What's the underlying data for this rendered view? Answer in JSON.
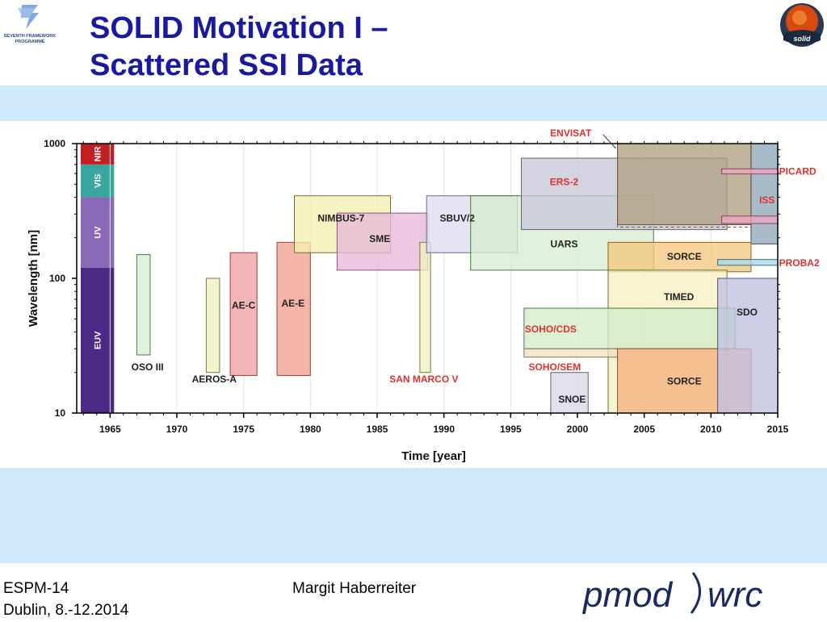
{
  "slide": {
    "title_line1": "SOLID Motivation I –",
    "title_line2": "Scattered SSI Data",
    "fp7_label_line1": "SEVENTH FRAMEWORK",
    "fp7_label_line2": "PROGRAMME",
    "solid_logo_text": "solid",
    "footer_left_line1": "ESPM-14",
    "footer_left_line2": "Dublin, 8.-12.2014",
    "footer_mid": "Margit Haberreiter",
    "footer_logo_left": "pmod",
    "footer_logo_right": "wrc"
  },
  "chart_data": {
    "type": "timeline",
    "xlabel": "Time [year]",
    "ylabel": "Wavelength [nm]",
    "xlim": [
      1962.5,
      2015
    ],
    "ylim": [
      10,
      1000
    ],
    "yscale": "log",
    "xticks": [
      1965,
      1970,
      1975,
      1980,
      1985,
      1990,
      1995,
      2000,
      2005,
      2010,
      2015
    ],
    "yticks": [
      {
        "value": 10,
        "label": "10"
      },
      {
        "value": 100,
        "label": "100"
      },
      {
        "value": 1000,
        "label": "1000"
      }
    ],
    "spectral_bands": [
      {
        "label": "EUV",
        "range": [
          10,
          120
        ],
        "color": "#4b2a85"
      },
      {
        "label": "UV",
        "range": [
          120,
          400
        ],
        "color": "#8a68b8"
      },
      {
        "label": "VIS",
        "range": [
          400,
          700
        ],
        "color": "#3aa6a0"
      },
      {
        "label": "NIR",
        "range": [
          700,
          1000
        ],
        "color": "#c02020"
      }
    ],
    "missions": [
      {
        "label": "OSO III",
        "x": [
          1967,
          1968
        ],
        "y": [
          27,
          150
        ],
        "fill": "#d6ecd2",
        "stroke": "#4a7a4a",
        "label_color": "#222222",
        "label_at": [
          1967.8,
          22
        ]
      },
      {
        "label": "AEROS-A",
        "x": [
          1972.2,
          1973.2
        ],
        "y": [
          20,
          100
        ],
        "fill": "#f0f0c0",
        "stroke": "#7a7a3a",
        "label_color": "#222222",
        "label_at": [
          1972.8,
          17.8
        ]
      },
      {
        "label": "AE-C",
        "x": [
          1974,
          1976
        ],
        "y": [
          19,
          155
        ],
        "fill": "#f0a0a0",
        "stroke": "#a04040",
        "label_color": "#222222",
        "label_at": [
          1975,
          63
        ]
      },
      {
        "label": "AE-E",
        "x": [
          1977.5,
          1980
        ],
        "y": [
          19,
          185
        ],
        "fill": "#f0a090",
        "stroke": "#a04030",
        "label_color": "#222222",
        "label_at": [
          1978.7,
          65
        ]
      },
      {
        "label": "NIMBUS-7",
        "x": [
          1978.8,
          1986
        ],
        "y": [
          155,
          410
        ],
        "fill": "#f2f0b0",
        "stroke": "#707030",
        "label_color": "#222222",
        "label_at": [
          1982.3,
          280
        ]
      },
      {
        "label": "SME",
        "x": [
          1982,
          1988.8
        ],
        "y": [
          115,
          305
        ],
        "fill": "#e8b8d8",
        "stroke": "#905080",
        "label_color": "#222222",
        "label_at": [
          1985.2,
          196
        ]
      },
      {
        "label": "SAN MARCO V",
        "x": [
          1988.2,
          1989
        ],
        "y": [
          20,
          185
        ],
        "fill": "#f0f0c0",
        "stroke": "#7a7a3a",
        "label_color": "#e03030",
        "label_at": [
          1988.5,
          17.8
        ]
      },
      {
        "label": "SBUV/2",
        "x": [
          1988.7,
          1995.5
        ],
        "y": [
          155,
          410
        ],
        "fill": "#dcdcee",
        "stroke": "#6a6a8a",
        "label_color": "#222222",
        "label_at": [
          1991,
          280
        ]
      },
      {
        "label": "UARS",
        "x": [
          1992,
          2005.7
        ],
        "y": [
          115,
          410
        ],
        "fill": "#d8ecd0",
        "stroke": "#4a7a4a",
        "label_color": "#222222",
        "label_at": [
          1999,
          180
        ]
      },
      {
        "label": "ERS-2",
        "x": [
          1995.8,
          2011.2
        ],
        "y": [
          230,
          780
        ],
        "fill": "#c8c8d8",
        "stroke": "#606070",
        "label_color": "#e03030",
        "label_at": [
          1999,
          520
        ]
      },
      {
        "label": "",
        "x": [
          2003,
          2013
        ],
        "y": [
          250,
          1000
        ],
        "fill": "#b0a080",
        "stroke": "#605040",
        "label_color": "#222222",
        "label_at": [
          2008,
          600
        ]
      },
      {
        "label": "",
        "x": [
          2013,
          2015
        ],
        "y": [
          180,
          1000
        ],
        "fill": "#90a8b8",
        "stroke": "#405060",
        "label_color": "#222222",
        "label_at": [
          2014,
          500
        ]
      },
      {
        "label": "SORCE",
        "x": [
          2002.3,
          2013
        ],
        "y": [
          112,
          185
        ],
        "fill": "#f4c880",
        "stroke": "#906020",
        "label_color": "#222222",
        "label_at": [
          2008,
          145
        ]
      },
      {
        "label": "TIMED",
        "x": [
          2002.3,
          2011.2
        ],
        "y": [
          10,
          115
        ],
        "fill": "#f4f0c0",
        "stroke": "#707030",
        "label_color": "#222222",
        "label_at": [
          2007.6,
          73
        ]
      },
      {
        "label": "SOHO/CDS",
        "x": [
          1996,
          2011.8
        ],
        "y": [
          30,
          60
        ],
        "fill": "#d4ecc8",
        "stroke": "#4a7a4a",
        "label_color": "#e03030",
        "label_at": [
          1998,
          42
        ]
      },
      {
        "label": "SOHO/SEM",
        "x": [
          1996,
          2003
        ],
        "y": [
          26,
          30
        ],
        "fill": "#f0e0c0",
        "stroke": "#907050",
        "label_color": "#e03030",
        "label_at": [
          1998.3,
          22
        ]
      },
      {
        "label": "SNOE",
        "x": [
          1998,
          2000.8
        ],
        "y": [
          10,
          20
        ],
        "fill": "#d8d8e6",
        "stroke": "#606080",
        "label_color": "#222222",
        "label_at": [
          1999.6,
          12.6
        ]
      },
      {
        "label": "SORCE",
        "x": [
          2003,
          2013
        ],
        "y": [
          10,
          30
        ],
        "fill": "#f4b080",
        "stroke": "#905030",
        "label_color": "#222222",
        "label_at": [
          2008,
          17.2
        ]
      },
      {
        "label": "SDO",
        "x": [
          2010.5,
          2015
        ],
        "y": [
          10,
          100
        ],
        "fill": "#c0c0e0",
        "stroke": "#505090",
        "label_color": "#222222",
        "label_at": [
          2012.7,
          56
        ]
      },
      {
        "label": "ENVISAT",
        "x": [
          2003,
          2013
        ],
        "y": [
          240,
          1000
        ],
        "fill": "none",
        "stroke": "#805030",
        "label_color": "#e03030",
        "label_at": [
          1999.5,
          1200
        ]
      },
      {
        "label": "PICARD",
        "x": [
          2010.8,
          2015
        ],
        "y": [
          595,
          650
        ],
        "fill": "#e8a8c0",
        "stroke": "#904060",
        "label_color": "#e03030",
        "label_at": [
          2015.1,
          620
        ]
      },
      {
        "label": "ISS",
        "x": [
          2010.8,
          2015
        ],
        "y": [
          255,
          290
        ],
        "fill": "#e8a8c0",
        "stroke": "#904060",
        "label_color": "#e03030",
        "label_at": [
          2014.2,
          380
        ]
      },
      {
        "label": "PROBA2",
        "x": [
          2010.5,
          2015
        ],
        "y": [
          125,
          138
        ],
        "fill": "#a8d8e8",
        "stroke": "#307090",
        "label_color": "#e03030",
        "label_at": [
          2015.1,
          130
        ]
      }
    ]
  }
}
